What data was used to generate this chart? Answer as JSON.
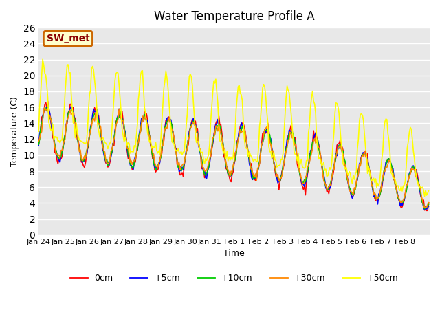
{
  "title": "Water Temperature Profile A",
  "xlabel": "Time",
  "ylabel": "Temperature (C)",
  "annotation": "SW_met",
  "annotation_bg": "#ffffcc",
  "annotation_border": "#cc6600",
  "annotation_text_color": "#8b0000",
  "ylim": [
    0,
    26
  ],
  "yticks": [
    0,
    2,
    4,
    6,
    8,
    10,
    12,
    14,
    16,
    18,
    20,
    22,
    24,
    26
  ],
  "xlabels": [
    "Jan 24",
    "Jan 25",
    "Jan 26",
    "Jan 27",
    "Jan 28",
    "Jan 29",
    "Jan 30",
    "Jan 31",
    "Feb 1",
    "Feb 2",
    "Feb 3",
    "Feb 4",
    "Feb 5",
    "Feb 6",
    "Feb 7",
    "Feb 8"
  ],
  "legend_entries": [
    "0cm",
    "+5cm",
    "+10cm",
    "+30cm",
    "+50cm"
  ],
  "legend_colors": [
    "#ff0000",
    "#0000ff",
    "#00cc00",
    "#ff8800",
    "#ffff00"
  ],
  "bg_color": "#e8e8e8",
  "grid_color": "#ffffff",
  "line_width": 1.2
}
